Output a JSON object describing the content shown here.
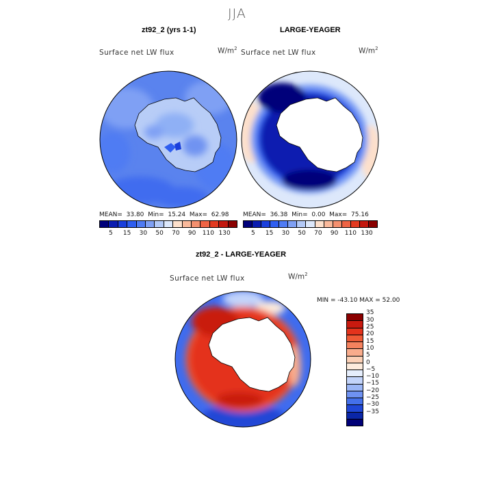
{
  "season": "JJA",
  "panels": {
    "left": {
      "title": "zt92_2 (yrs 1-1)",
      "variable": "Surface net LW flux",
      "unit": "W/m",
      "unit_sup": "2"
    },
    "right": {
      "title": "LARGE-YEAGER",
      "variable": "Surface net LW flux",
      "unit": "W/m",
      "unit_sup": "2"
    },
    "diff": {
      "title": "zt92_2 - LARGE-YEAGER",
      "variable": "Surface net LW flux",
      "unit": "W/m",
      "unit_sup": "2"
    }
  },
  "stats": {
    "left": {
      "mean_label": "MEAN=",
      "mean": "33.80",
      "min_label": "Min=",
      "min": "15.24",
      "max_label": "Max=",
      "max": "62.98"
    },
    "right": {
      "mean_label": "MEAN=",
      "mean": "36.38",
      "min_label": "Min=",
      "min": "0.00",
      "max_label": "Max=",
      "max": "75.16"
    },
    "diff": {
      "text": "MIN = -43.10  MAX =  52.00"
    }
  },
  "colorbar_top": {
    "colors": [
      "#00007a",
      "#0a1cb0",
      "#1a3fdc",
      "#2f5ef0",
      "#4f7bf3",
      "#7fa0f4",
      "#b3c9f7",
      "#dde8fb",
      "#fde0cc",
      "#f9b99b",
      "#f4906f",
      "#ef6445",
      "#e23a21",
      "#c3170e",
      "#8a0000"
    ],
    "labels": [
      "5",
      "15",
      "30",
      "50",
      "70",
      "90",
      "110",
      "130"
    ]
  },
  "colorbar_diff": {
    "labels": [
      "35",
      "30",
      "25",
      "20",
      "15",
      "10",
      "5",
      "0",
      "−5",
      "−10",
      "−15",
      "−20",
      "−25",
      "−30",
      "−35"
    ],
    "colors": [
      "#8b0000",
      "#c91a0f",
      "#e4331c",
      "#ef5a36",
      "#f5825e",
      "#f9ac8c",
      "#fbd0b6",
      "#fdebdc",
      "#e6eefc",
      "#c3d4fa",
      "#9bb6f6",
      "#6f92f2",
      "#4470ea",
      "#2047d6",
      "#0a26a8",
      "#000078"
    ]
  },
  "chart_data": [
    {
      "type": "heatmap",
      "projection": "south-polar-stereographic",
      "title": "zt92_2 (yrs 1-1)",
      "variable": "Surface net LW flux",
      "units": "W/m^2",
      "mean": 33.8,
      "min": 15.24,
      "max": 62.98,
      "contour_levels": [
        5,
        10,
        15,
        20,
        25,
        30,
        40,
        50,
        60,
        70,
        80,
        90,
        100,
        110,
        120,
        130
      ]
    },
    {
      "type": "heatmap",
      "projection": "south-polar-stereographic",
      "title": "LARGE-YEAGER",
      "variable": "Surface net LW flux",
      "units": "W/m^2",
      "mean": 36.38,
      "min": 0.0,
      "max": 75.16,
      "contour_levels": [
        5,
        10,
        15,
        20,
        25,
        30,
        40,
        50,
        60,
        70,
        80,
        90,
        100,
        110,
        120,
        130
      ]
    },
    {
      "type": "heatmap",
      "projection": "south-polar-stereographic",
      "title": "zt92_2 - LARGE-YEAGER",
      "variable": "Surface net LW flux",
      "units": "W/m^2",
      "min": -43.1,
      "max": 52.0,
      "contour_levels": [
        -35,
        -30,
        -25,
        -20,
        -15,
        -10,
        -5,
        0,
        5,
        10,
        15,
        20,
        25,
        30,
        35
      ]
    }
  ]
}
